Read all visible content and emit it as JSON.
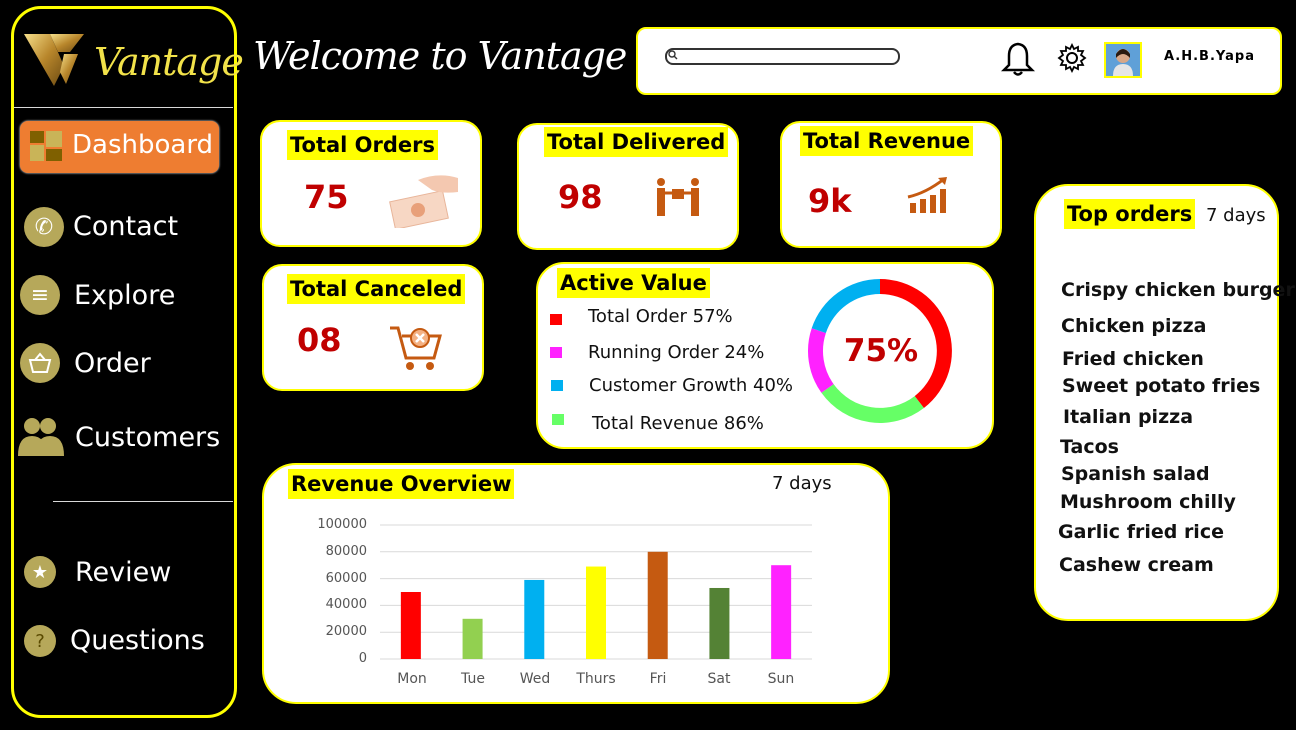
{
  "brand": {
    "logo_text": "Vantage"
  },
  "page_title": "Welcome to Vantage",
  "header": {
    "search_placeholder": "",
    "user_name": "A.H.B.Yapa"
  },
  "sidebar": {
    "items": [
      {
        "label": "Dashboard",
        "icon": "dashboard-icon",
        "active": true
      },
      {
        "label": "Contact",
        "icon": "phone-icon"
      },
      {
        "label": "Explore",
        "icon": "list-icon"
      },
      {
        "label": "Order",
        "icon": "basket-icon"
      },
      {
        "label": "Customers",
        "icon": "users-icon"
      },
      {
        "label": "Review",
        "icon": "star-icon"
      },
      {
        "label": "Questions",
        "icon": "question-icon"
      }
    ]
  },
  "stats": {
    "orders": {
      "label": "Total Orders",
      "value": "75",
      "icon": "money-hand-icon"
    },
    "delivered": {
      "label": "Total Delivered",
      "value": "98",
      "icon": "delivery-icon"
    },
    "revenue": {
      "label": "Total Revenue",
      "value": "9k",
      "icon": "growth-chart-icon"
    },
    "canceled": {
      "label": "Total Canceled",
      "value": "08",
      "icon": "cart-cancel-icon"
    }
  },
  "active_value": {
    "title": "Active Value",
    "center_label": "75%",
    "legend": [
      {
        "label": "Total Order 57%",
        "color": "#ff0000"
      },
      {
        "label": "Running Order 24%",
        "color": "#ff22ff"
      },
      {
        "label": "Customer Growth 40%",
        "color": "#00b0f0"
      },
      {
        "label": "Total Revenue 86%",
        "color": "#66ff66"
      }
    ]
  },
  "top_orders": {
    "title": "Top orders",
    "period": "7 days",
    "items": [
      "Crispy chicken burger",
      "Chicken pizza",
      "Fried chicken",
      "Sweet potato fries",
      "Italian pizza",
      "Tacos",
      "Spanish salad",
      "Mushroom chilly",
      "Garlic fried rice",
      "Cashew cream"
    ]
  },
  "chart_data": {
    "type": "bar",
    "title": "Revenue Overview",
    "period": "7 days",
    "categories": [
      "Mon",
      "Tue",
      "Wed",
      "Thurs",
      "Fri",
      "Sat",
      "Sun"
    ],
    "values": [
      50000,
      30000,
      59000,
      69000,
      80000,
      53000,
      70000
    ],
    "colors": [
      "#ff0000",
      "#92d050",
      "#00b0f0",
      "#ffff00",
      "#c55a11",
      "#548235",
      "#ff22ff"
    ],
    "ylim": [
      0,
      100000
    ],
    "yticks": [
      "100000",
      "80000",
      "60000",
      "40000",
      "20000",
      "0"
    ],
    "grid": true
  }
}
